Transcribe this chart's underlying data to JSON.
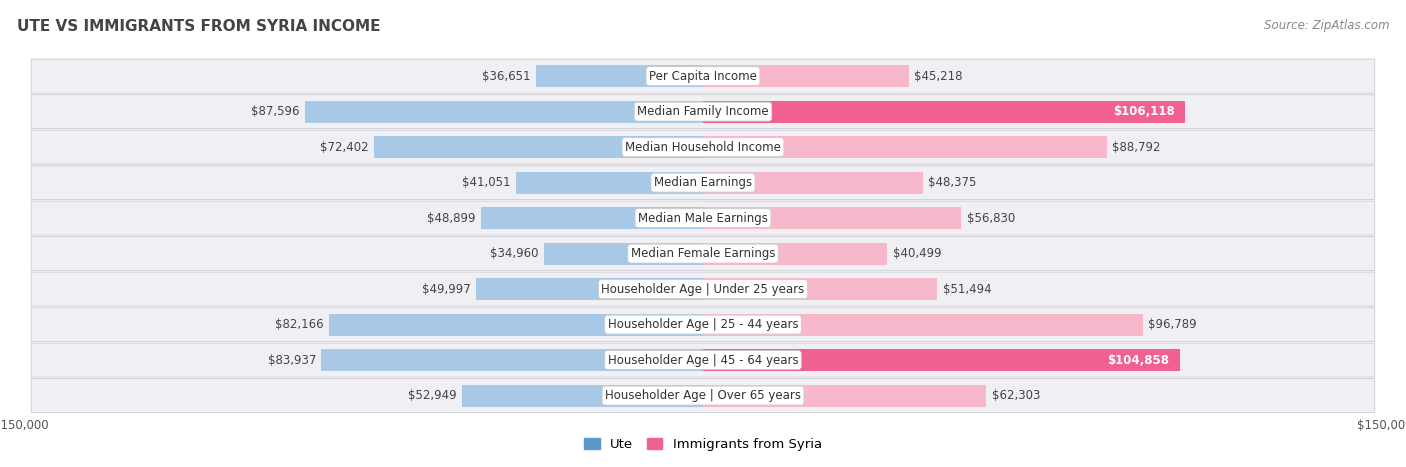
{
  "title": "UTE VS IMMIGRANTS FROM SYRIA INCOME",
  "source": "Source: ZipAtlas.com",
  "categories": [
    "Per Capita Income",
    "Median Family Income",
    "Median Household Income",
    "Median Earnings",
    "Median Male Earnings",
    "Median Female Earnings",
    "Householder Age | Under 25 years",
    "Householder Age | 25 - 44 years",
    "Householder Age | 45 - 64 years",
    "Householder Age | Over 65 years"
  ],
  "ute_values": [
    36651,
    87596,
    72402,
    41051,
    48899,
    34960,
    49997,
    82166,
    83937,
    52949
  ],
  "syria_values": [
    45218,
    106118,
    88792,
    48375,
    56830,
    40499,
    51494,
    96789,
    104858,
    62303
  ],
  "ute_color_light": "#a8c8e8",
  "ute_color_dark": "#5b96cc",
  "syria_color_light": "#f8b8cc",
  "syria_color_dark": "#f06090",
  "max_value": 150000,
  "bar_height": 0.62,
  "row_bg_color": "#f0f0f4",
  "row_border_color": "#d0d0d8",
  "label_fontsize": 8.5,
  "value_fontsize": 8.5,
  "title_fontsize": 11,
  "source_fontsize": 8.5,
  "legend_labels": [
    "Ute",
    "Immigrants from Syria"
  ],
  "white_text_threshold": 0.68
}
